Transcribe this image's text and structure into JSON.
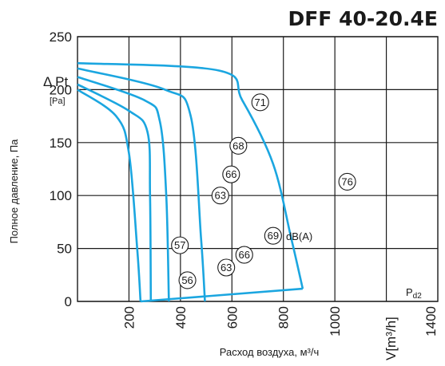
{
  "chart_data": {
    "type": "line",
    "title": "DFF 40-20.4E",
    "ylabel": "Полное давление, Па",
    "xlabel": "Расход воздуха, м³/ч",
    "ylim": [
      0,
      250
    ],
    "xlim": [
      0,
      1400
    ],
    "yticks": [
      "0",
      "50",
      "100",
      "150",
      "200",
      "250"
    ],
    "xticks": [
      "200",
      "400",
      "600",
      "800",
      "1000",
      "1400"
    ],
    "x_unit_label": "V[m³/h]",
    "y_unit_label": "Δ Pt",
    "y_unit_sub": "[Pa]",
    "grid": true,
    "series": [
      {
        "x": [
          0,
          150,
          200,
          232,
          245
        ],
        "values": [
          200,
          175,
          140,
          50,
          0
        ]
      },
      {
        "x": [
          0,
          200,
          272,
          282,
          285
        ],
        "values": [
          205,
          180,
          160,
          100,
          0
        ]
      },
      {
        "x": [
          0,
          260,
          320,
          345,
          355
        ],
        "values": [
          212,
          190,
          170,
          100,
          0
        ]
      },
      {
        "x": [
          0,
          340,
          440,
          480,
          495
        ],
        "values": [
          220,
          200,
          175,
          60,
          0
        ]
      },
      {
        "x": [
          0,
          550,
          640,
          760,
          830,
          875
        ],
        "values": [
          225,
          218,
          190,
          130,
          60,
          12
        ]
      }
    ],
    "noise_markers": [
      {
        "label": "71",
        "x": 710,
        "y": 188
      },
      {
        "label": "68",
        "x": 625,
        "y": 147
      },
      {
        "label": "66",
        "x": 597,
        "y": 120
      },
      {
        "label": "63",
        "x": 555,
        "y": 100
      },
      {
        "label": "57",
        "x": 398,
        "y": 53
      },
      {
        "label": "56",
        "x": 427,
        "y": 20
      },
      {
        "label": "63",
        "x": 578,
        "y": 32
      },
      {
        "label": "66",
        "x": 648,
        "y": 44
      },
      {
        "label": "69",
        "x": 760,
        "y": 62
      },
      {
        "label": "76",
        "x": 1048,
        "y": 113
      }
    ],
    "dba_label": "dB(A)",
    "pd2_label": "Pd2"
  },
  "colors": {
    "curve": "#1ba6e0",
    "grid": "#1a1a1a"
  }
}
